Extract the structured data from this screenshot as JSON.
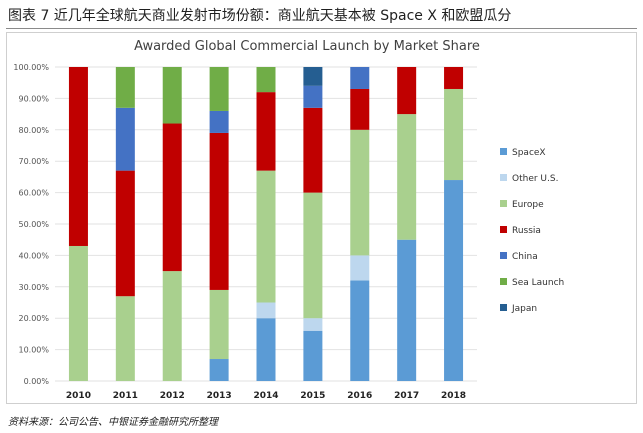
{
  "figure": {
    "caption": "图表 7 近几年全球航天商业发射市场份额：商业航天基本被 Space X 和欧盟瓜分",
    "source": "资料来源：公司公告、中银证券金融研究所整理",
    "watermark": "\u0001\u0001 \u0001\u0001\u0001\u0001\u0001"
  },
  "chart_data": {
    "type": "bar",
    "stacked": true,
    "title": "Awarded Global Commercial Launch by Market Share",
    "categories": [
      "2010",
      "2011",
      "2012",
      "2013",
      "2014",
      "2015",
      "2016",
      "2017",
      "2018"
    ],
    "ylim": [
      0,
      100
    ],
    "yticks": [
      "0.00%",
      "10.00%",
      "20.00%",
      "30.00%",
      "40.00%",
      "50.00%",
      "60.00%",
      "70.00%",
      "80.00%",
      "90.00%",
      "100.00%"
    ],
    "xlabel": "",
    "ylabel": "",
    "legend_position": "right",
    "series": [
      {
        "name": "SpaceX",
        "color": "#5b9bd5",
        "values": [
          0,
          0,
          0,
          7,
          20,
          16,
          32,
          45,
          64
        ]
      },
      {
        "name": "Other U.S.",
        "color": "#bdd7ee",
        "values": [
          0,
          0,
          0,
          0,
          5,
          4,
          8,
          0,
          0
        ]
      },
      {
        "name": "Europe",
        "color": "#a9d08e",
        "values": [
          43,
          27,
          35,
          22,
          42,
          40,
          40,
          40,
          29
        ]
      },
      {
        "name": "Russia",
        "color": "#c00000",
        "values": [
          57,
          40,
          47,
          50,
          25,
          27,
          13,
          15,
          7
        ]
      },
      {
        "name": "China",
        "color": "#4472c4",
        "values": [
          0,
          20,
          0,
          7,
          0,
          7,
          7,
          0,
          0
        ]
      },
      {
        "name": "Sea Launch",
        "color": "#70ad47",
        "values": [
          0,
          13,
          18,
          14,
          8,
          0,
          0,
          0,
          0
        ]
      },
      {
        "name": "Japan",
        "color": "#255e91",
        "values": [
          0,
          0,
          0,
          0,
          0,
          6,
          0,
          0,
          0
        ]
      }
    ]
  }
}
